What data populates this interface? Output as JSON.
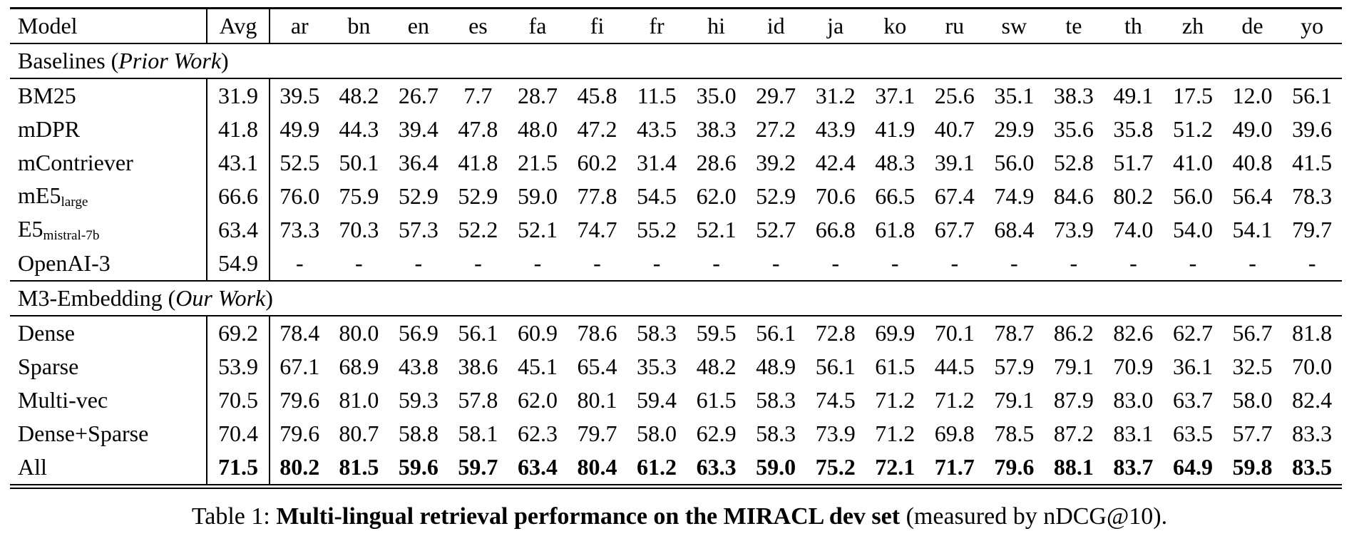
{
  "colors": {
    "text": "#000000",
    "background": "#ffffff",
    "rule": "#000000"
  },
  "table": {
    "columns": [
      "Model",
      "Avg",
      "ar",
      "bn",
      "en",
      "es",
      "fa",
      "fi",
      "fr",
      "hi",
      "id",
      "ja",
      "ko",
      "ru",
      "sw",
      "te",
      "th",
      "zh",
      "de",
      "yo"
    ],
    "rows": [
      {
        "type": "section",
        "prefix": "Baselines (",
        "italic": "Prior Work",
        "suffix": ")"
      },
      {
        "type": "data",
        "label": "BM25",
        "sub": "",
        "avg": "31.9",
        "bold": false,
        "values": [
          "39.5",
          "48.2",
          "26.7",
          "7.7",
          "28.7",
          "45.8",
          "11.5",
          "35.0",
          "29.7",
          "31.2",
          "37.1",
          "25.6",
          "35.1",
          "38.3",
          "49.1",
          "17.5",
          "12.0",
          "56.1"
        ]
      },
      {
        "type": "data",
        "label": "mDPR",
        "sub": "",
        "avg": "41.8",
        "bold": false,
        "values": [
          "49.9",
          "44.3",
          "39.4",
          "47.8",
          "48.0",
          "47.2",
          "43.5",
          "38.3",
          "27.2",
          "43.9",
          "41.9",
          "40.7",
          "29.9",
          "35.6",
          "35.8",
          "51.2",
          "49.0",
          "39.6"
        ]
      },
      {
        "type": "data",
        "label": "mContriever",
        "sub": "",
        "avg": "43.1",
        "bold": false,
        "values": [
          "52.5",
          "50.1",
          "36.4",
          "41.8",
          "21.5",
          "60.2",
          "31.4",
          "28.6",
          "39.2",
          "42.4",
          "48.3",
          "39.1",
          "56.0",
          "52.8",
          "51.7",
          "41.0",
          "40.8",
          "41.5"
        ]
      },
      {
        "type": "data",
        "label": "mE5",
        "sub": "large",
        "avg": "66.6",
        "bold": false,
        "values": [
          "76.0",
          "75.9",
          "52.9",
          "52.9",
          "59.0",
          "77.8",
          "54.5",
          "62.0",
          "52.9",
          "70.6",
          "66.5",
          "67.4",
          "74.9",
          "84.6",
          "80.2",
          "56.0",
          "56.4",
          "78.3"
        ]
      },
      {
        "type": "data",
        "label": "E5",
        "sub": "mistral-7b",
        "avg": "63.4",
        "bold": false,
        "values": [
          "73.3",
          "70.3",
          "57.3",
          "52.2",
          "52.1",
          "74.7",
          "55.2",
          "52.1",
          "52.7",
          "66.8",
          "61.8",
          "67.7",
          "68.4",
          "73.9",
          "74.0",
          "54.0",
          "54.1",
          "79.7"
        ]
      },
      {
        "type": "data",
        "label": "OpenAI-3",
        "sub": "",
        "avg": "54.9",
        "bold": false,
        "values": [
          "-",
          "-",
          "-",
          "-",
          "-",
          "-",
          "-",
          "-",
          "-",
          "-",
          "-",
          "-",
          "-",
          "-",
          "-",
          "-",
          "-",
          "-"
        ]
      },
      {
        "type": "section",
        "prefix": "M3-Embedding (",
        "italic": "Our Work",
        "suffix": ")"
      },
      {
        "type": "data",
        "label": "Dense",
        "sub": "",
        "avg": "69.2",
        "bold": false,
        "values": [
          "78.4",
          "80.0",
          "56.9",
          "56.1",
          "60.9",
          "78.6",
          "58.3",
          "59.5",
          "56.1",
          "72.8",
          "69.9",
          "70.1",
          "78.7",
          "86.2",
          "82.6",
          "62.7",
          "56.7",
          "81.8"
        ]
      },
      {
        "type": "data",
        "label": "Sparse",
        "sub": "",
        "avg": "53.9",
        "bold": false,
        "values": [
          "67.1",
          "68.9",
          "43.8",
          "38.6",
          "45.1",
          "65.4",
          "35.3",
          "48.2",
          "48.9",
          "56.1",
          "61.5",
          "44.5",
          "57.9",
          "79.1",
          "70.9",
          "36.1",
          "32.5",
          "70.0"
        ]
      },
      {
        "type": "data",
        "label": "Multi-vec",
        "sub": "",
        "avg": "70.5",
        "bold": false,
        "values": [
          "79.6",
          "81.0",
          "59.3",
          "57.8",
          "62.0",
          "80.1",
          "59.4",
          "61.5",
          "58.3",
          "74.5",
          "71.2",
          "71.2",
          "79.1",
          "87.9",
          "83.0",
          "63.7",
          "58.0",
          "82.4"
        ]
      },
      {
        "type": "data",
        "label": "Dense+Sparse",
        "sub": "",
        "avg": "70.4",
        "bold": false,
        "values": [
          "79.6",
          "80.7",
          "58.8",
          "58.1",
          "62.3",
          "79.7",
          "58.0",
          "62.9",
          "58.3",
          "73.9",
          "71.2",
          "69.8",
          "78.5",
          "87.2",
          "83.1",
          "63.5",
          "57.7",
          "83.3"
        ]
      },
      {
        "type": "data",
        "label": "All",
        "sub": "",
        "avg": "71.5",
        "bold": true,
        "values": [
          "80.2",
          "81.5",
          "59.6",
          "59.7",
          "63.4",
          "80.4",
          "61.2",
          "63.3",
          "59.0",
          "75.2",
          "72.1",
          "71.7",
          "79.6",
          "88.1",
          "83.7",
          "64.9",
          "59.8",
          "83.5"
        ]
      }
    ]
  },
  "caption": {
    "prefix": "Table 1: ",
    "bold": "Multi-lingual retrieval performance on the MIRACL dev set",
    "suffix": " (measured by nDCG@10)."
  }
}
